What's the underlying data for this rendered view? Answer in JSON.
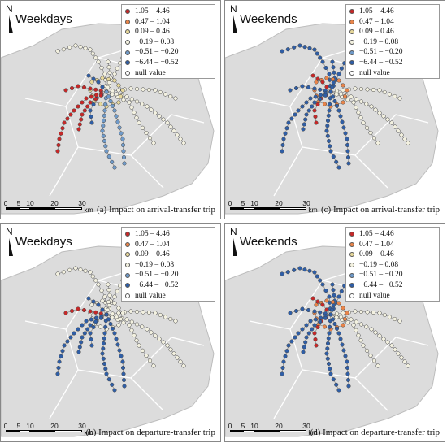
{
  "legend": {
    "classes": [
      {
        "label": "1.05 – 4.46",
        "color": "#c62828"
      },
      {
        "label": "0.47 – 1.04",
        "color": "#e8844a"
      },
      {
        "label": "0.09 – 0.46",
        "color": "#e6d79a"
      },
      {
        "label": "−0.19 – 0.08",
        "color": "#f3f1e0"
      },
      {
        "label": "−0.51 – −0.20",
        "color": "#6f9ac9"
      },
      {
        "label": "−6.44 – −0.52",
        "color": "#2f5ea6"
      },
      {
        "label": "null value",
        "color": "#ffffff"
      }
    ]
  },
  "north_label": "N",
  "scale": {
    "ticks": [
      "0",
      "5",
      "10",
      "20",
      "30"
    ],
    "unit": "km"
  },
  "panels": [
    {
      "id": "a",
      "title": "Weekdays",
      "caption": "(a) Impact on arrival-transfer trip",
      "pattern": {
        "west": "#c62828",
        "sw": "#c62828",
        "south": "#6f9ac9",
        "north": "#f3f1e0",
        "center": "#e6d79a",
        "east": "#f3f1e0",
        "cwest": "#2f5ea6"
      }
    },
    {
      "id": "c",
      "title": "Weekends",
      "caption": "(c) Impact on arrival-transfer trip",
      "pattern": {
        "west": "#2f5ea6",
        "sw": "#2f5ea6",
        "south": "#2f5ea6",
        "north": "#2f5ea6",
        "center": "#e8844a",
        "east": "#f3f1e0",
        "cwest": "#c62828"
      }
    },
    {
      "id": "b",
      "title": "Weekdays",
      "caption": "(b) Impact on departure-transfer trip",
      "pattern": {
        "west": "#c62828",
        "sw": "#2f5ea6",
        "south": "#2f5ea6",
        "north": "#f3f1e0",
        "center": "#f3f1e0",
        "east": "#f3f1e0",
        "cwest": "#2f5ea6"
      }
    },
    {
      "id": "d",
      "title": "Weekends",
      "caption": "(d) Impact on departure-transfer trip",
      "pattern": {
        "west": "#2f5ea6",
        "sw": "#2f5ea6",
        "south": "#2f5ea6",
        "north": "#2f5ea6",
        "center": "#e8844a",
        "east": "#f3f1e0",
        "cwest": "#c62828"
      }
    }
  ]
}
